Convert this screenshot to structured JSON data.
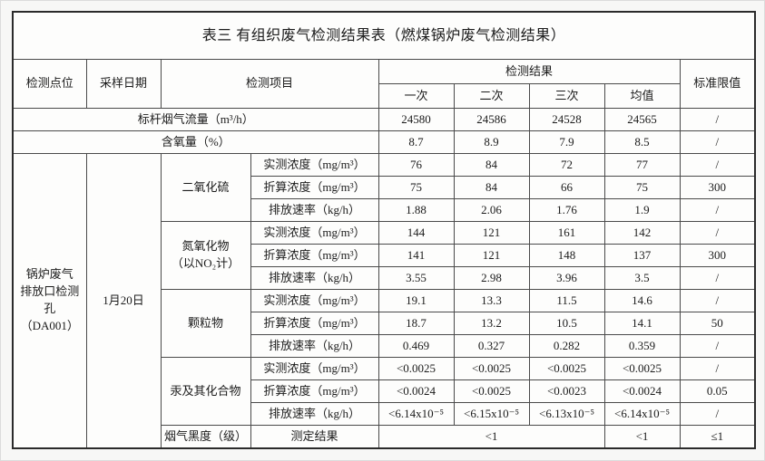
{
  "table": {
    "title": "表三 有组织废气检测结果表（燃煤锅炉废气检测结果）",
    "headers": {
      "point": "检测点位",
      "date": "采样日期",
      "item": "检测项目",
      "results": "检测结果",
      "limit": "标准限值",
      "runs": [
        "一次",
        "二次",
        "三次",
        "均值"
      ]
    },
    "rows": [
      {
        "cells": [
          {
            "t": "标杆烟气流量（m³/h）",
            "cs": 4,
            "n": "row-label-standard-flue-gas-flow"
          },
          {
            "t": "24580"
          },
          {
            "t": "24586"
          },
          {
            "t": "24528"
          },
          {
            "t": "24565"
          },
          {
            "t": "/"
          }
        ]
      },
      {
        "cells": [
          {
            "t": "含氧量（%）",
            "cs": 4,
            "n": "row-label-oxygen-content"
          },
          {
            "t": "8.7"
          },
          {
            "t": "8.9"
          },
          {
            "t": "7.9"
          },
          {
            "t": "8.5"
          },
          {
            "t": "/"
          }
        ]
      },
      {
        "cells": [
          {
            "t": "锅炉废气\n排放口检测孔\n（DA001）",
            "rs": 15,
            "n": "monitoring-point"
          },
          {
            "t": "1月20日",
            "rs": 15,
            "n": "sampling-date"
          },
          {
            "t": "二氧化硫",
            "rs": 3,
            "n": "pollutant-so2"
          },
          {
            "t": "实测浓度（mg/m³）",
            "n": "param-measured-concentration"
          },
          {
            "t": "76"
          },
          {
            "t": "84"
          },
          {
            "t": "72"
          },
          {
            "t": "77"
          },
          {
            "t": "/"
          }
        ]
      },
      {
        "cells": [
          {
            "t": "折算浓度（mg/m³）",
            "n": "param-converted-concentration"
          },
          {
            "t": "75"
          },
          {
            "t": "84"
          },
          {
            "t": "66"
          },
          {
            "t": "75"
          },
          {
            "t": "300"
          }
        ]
      },
      {
        "cells": [
          {
            "t": "排放速率（kg/h）",
            "n": "param-emission-rate"
          },
          {
            "t": "1.88"
          },
          {
            "t": "2.06"
          },
          {
            "t": "1.76"
          },
          {
            "t": "1.9"
          },
          {
            "t": "/"
          }
        ]
      },
      {
        "cells": [
          {
            "t": "氮氧化物\n（以NO₂计）",
            "rs": 3,
            "n": "pollutant-nox"
          },
          {
            "t": "实测浓度（mg/m³）",
            "n": "param-measured-concentration"
          },
          {
            "t": "144"
          },
          {
            "t": "121"
          },
          {
            "t": "161"
          },
          {
            "t": "142"
          },
          {
            "t": "/"
          }
        ]
      },
      {
        "cells": [
          {
            "t": "折算浓度（mg/m³）",
            "n": "param-converted-concentration"
          },
          {
            "t": "141"
          },
          {
            "t": "121"
          },
          {
            "t": "148"
          },
          {
            "t": "137"
          },
          {
            "t": "300"
          }
        ]
      },
      {
        "cells": [
          {
            "t": "排放速率（kg/h）",
            "n": "param-emission-rate"
          },
          {
            "t": "3.55"
          },
          {
            "t": "2.98"
          },
          {
            "t": "3.96"
          },
          {
            "t": "3.5"
          },
          {
            "t": "/"
          }
        ]
      },
      {
        "cells": [
          {
            "t": "颗粒物",
            "rs": 3,
            "n": "pollutant-particulate-matter"
          },
          {
            "t": "实测浓度（mg/m³）",
            "n": "param-measured-concentration"
          },
          {
            "t": "19.1"
          },
          {
            "t": "13.3"
          },
          {
            "t": "11.5"
          },
          {
            "t": "14.6"
          },
          {
            "t": "/"
          }
        ]
      },
      {
        "cells": [
          {
            "t": "折算浓度（mg/m³）",
            "n": "param-converted-concentration"
          },
          {
            "t": "18.7"
          },
          {
            "t": "13.2"
          },
          {
            "t": "10.5"
          },
          {
            "t": "14.1"
          },
          {
            "t": "50"
          }
        ]
      },
      {
        "cells": [
          {
            "t": "排放速率（kg/h）",
            "n": "param-emission-rate"
          },
          {
            "t": "0.469"
          },
          {
            "t": "0.327"
          },
          {
            "t": "0.282"
          },
          {
            "t": "0.359"
          },
          {
            "t": "/"
          }
        ]
      },
      {
        "cells": [
          {
            "t": "汞及其化合物",
            "rs": 3,
            "n": "pollutant-mercury-compounds"
          },
          {
            "t": "实测浓度（mg/m³）",
            "n": "param-measured-concentration"
          },
          {
            "t": "<0.0025"
          },
          {
            "t": "<0.0025"
          },
          {
            "t": "<0.0025"
          },
          {
            "t": "<0.0025"
          },
          {
            "t": "/"
          }
        ]
      },
      {
        "cells": [
          {
            "t": "折算浓度（mg/m³）",
            "n": "param-converted-concentration"
          },
          {
            "t": "<0.0024"
          },
          {
            "t": "<0.0025"
          },
          {
            "t": "<0.0023"
          },
          {
            "t": "<0.0024"
          },
          {
            "t": "0.05"
          }
        ]
      },
      {
        "cells": [
          {
            "t": "排放速率（kg/h）",
            "n": "param-emission-rate"
          },
          {
            "t": "<6.14x10⁻⁵"
          },
          {
            "t": "<6.15x10⁻⁵"
          },
          {
            "t": "<6.13x10⁻⁵"
          },
          {
            "t": "<6.14x10⁻⁵"
          },
          {
            "t": "/"
          }
        ]
      },
      {
        "cells": [
          {
            "t": "烟气黑度（级）",
            "n": "pollutant-smoke-blackness"
          },
          {
            "t": "测定结果",
            "n": "param-determination-result"
          },
          {
            "t": "<1",
            "cs": 3
          },
          {
            "t": "<1"
          },
          {
            "t": "≤1"
          }
        ]
      }
    ]
  }
}
